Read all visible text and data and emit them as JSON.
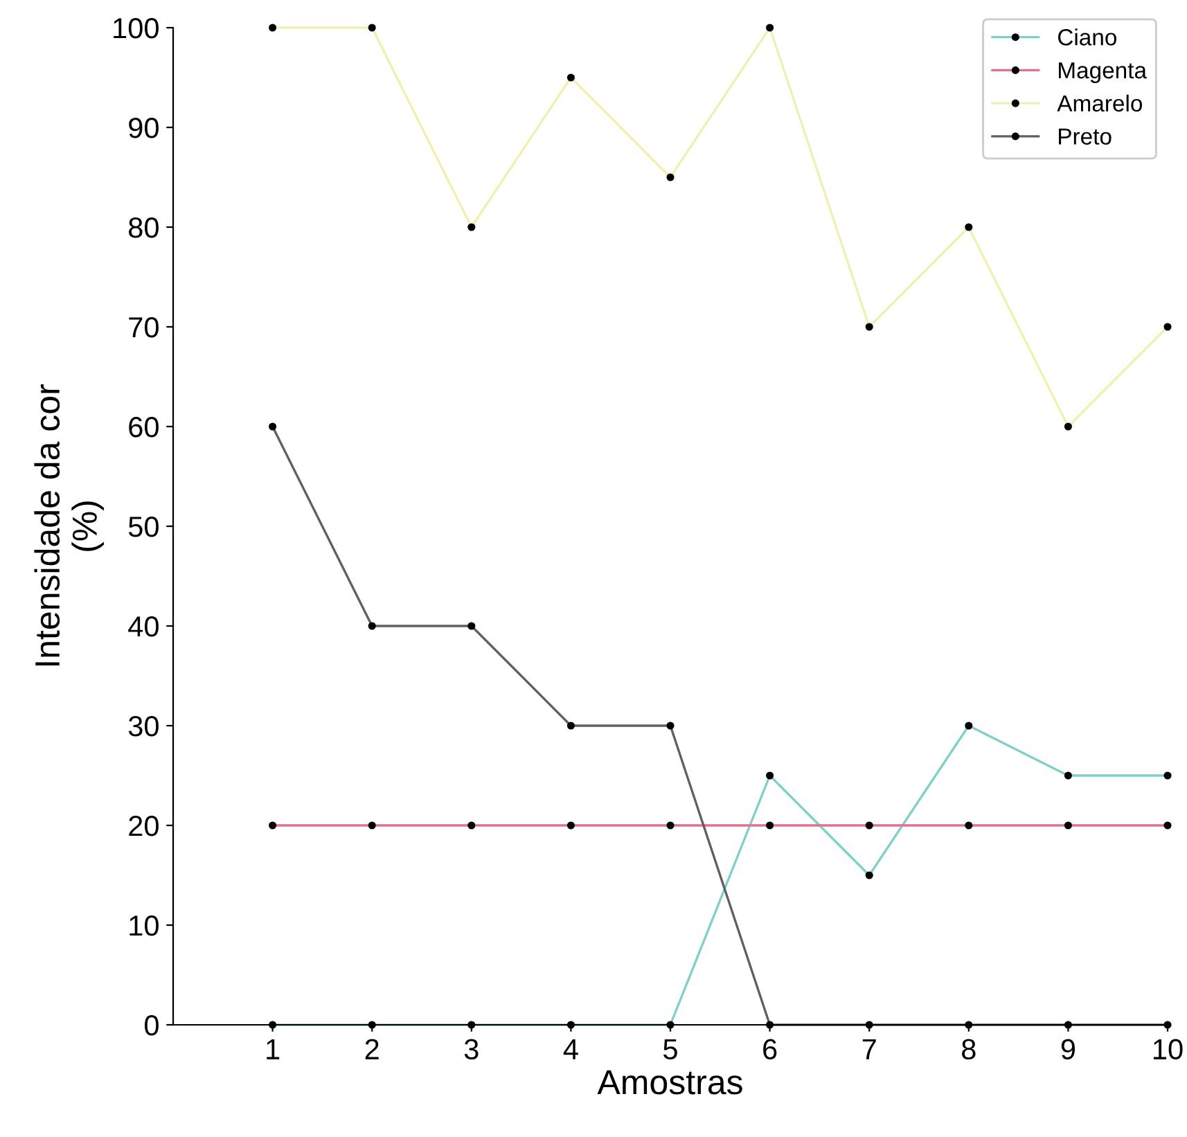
{
  "chart_data": {
    "type": "line",
    "xlabel": "Amostras",
    "ylabel": "Intensidade da cor\n(%)",
    "x": [
      1,
      2,
      3,
      4,
      5,
      6,
      7,
      8,
      9,
      10
    ],
    "series": [
      {
        "name": "Ciano",
        "color": "#80d0c8",
        "values": [
          0,
          0,
          0,
          0,
          0,
          25,
          15,
          30,
          25,
          25
        ]
      },
      {
        "name": "Magenta",
        "color": "#e07090",
        "values": [
          20,
          20,
          20,
          20,
          20,
          20,
          20,
          20,
          20,
          20
        ]
      },
      {
        "name": "Amarelo",
        "color": "#f0f0b0",
        "values": [
          100,
          100,
          80,
          95,
          85,
          100,
          70,
          80,
          60,
          70
        ]
      },
      {
        "name": "Preto",
        "color": "#606060",
        "values": [
          60,
          40,
          40,
          30,
          30,
          0,
          0,
          0,
          0,
          0
        ]
      }
    ],
    "xlim": [
      0,
      10
    ],
    "xticks": [
      1,
      2,
      3,
      4,
      5,
      6,
      7,
      8,
      9,
      10
    ],
    "ylim": [
      0,
      100
    ],
    "yticks": [
      0,
      10,
      20,
      30,
      40,
      50,
      60,
      70,
      80,
      90,
      100
    ],
    "marker": "circle",
    "line_style": "solid",
    "legend": "top right",
    "grid": false
  }
}
